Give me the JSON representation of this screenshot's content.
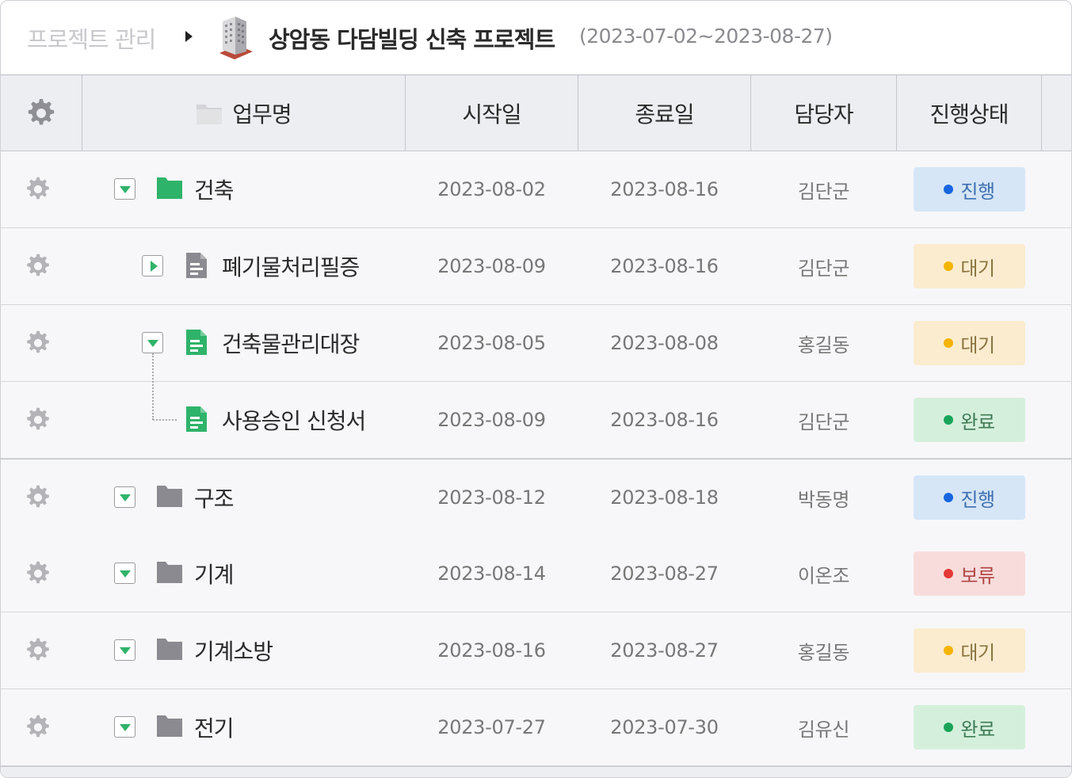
{
  "breadcrumb": {
    "root": "프로젝트 관리",
    "title": "상암동 다담빌딩 신축 프로젝트",
    "date_range": "(2023-07-02~2023-08-27)"
  },
  "columns": {
    "name": "업무명",
    "start": "시작일",
    "end": "종료일",
    "owner": "담당자",
    "status": "진행상태"
  },
  "status_colors": {
    "진행": {
      "bg": "#d6e6f7",
      "dot": "#1766e0",
      "text": "#3e6fb0"
    },
    "대기": {
      "bg": "#fbeccf",
      "dot": "#f4b400",
      "text": "#8a7440"
    },
    "완료": {
      "bg": "#d4f0dc",
      "dot": "#1aa45a",
      "text": "#3f7a55"
    },
    "보류": {
      "bg": "#f8dcdc",
      "dot": "#e53935",
      "text": "#b04444"
    }
  },
  "rows": [
    {
      "name": "건축",
      "type": "folder",
      "color": "green",
      "toggle": "expanded",
      "start": "2023-08-02",
      "end": "2023-08-16",
      "owner": "김단군",
      "status": "진행"
    },
    {
      "name": "폐기물처리필증",
      "type": "doc",
      "color": "gray",
      "toggle": "collapsed",
      "start": "2023-08-09",
      "end": "2023-08-16",
      "owner": "김단군",
      "status": "대기"
    },
    {
      "name": "건축물관리대장",
      "type": "doc",
      "color": "green",
      "toggle": "expanded",
      "start": "2023-08-05",
      "end": "2023-08-08",
      "owner": "홍길동",
      "status": "대기"
    },
    {
      "name": "사용승인 신청서",
      "type": "doc",
      "color": "green",
      "toggle": "none",
      "start": "2023-08-09",
      "end": "2023-08-16",
      "owner": "김단군",
      "status": "완료"
    },
    {
      "name": "구조",
      "type": "folder",
      "color": "gray",
      "toggle": "expanded",
      "start": "2023-08-12",
      "end": "2023-08-18",
      "owner": "박동명",
      "status": "진행"
    },
    {
      "name": "기계",
      "type": "folder",
      "color": "gray",
      "toggle": "expanded",
      "start": "2023-08-14",
      "end": "2023-08-27",
      "owner": "이온조",
      "status": "보류"
    },
    {
      "name": "기계소방",
      "type": "folder",
      "color": "gray",
      "toggle": "expanded",
      "start": "2023-08-16",
      "end": "2023-08-27",
      "owner": "홍길동",
      "status": "대기"
    },
    {
      "name": "전기",
      "type": "folder",
      "color": "gray",
      "toggle": "expanded",
      "start": "2023-07-27",
      "end": "2023-07-30",
      "owner": "김유신",
      "status": "완료"
    }
  ]
}
